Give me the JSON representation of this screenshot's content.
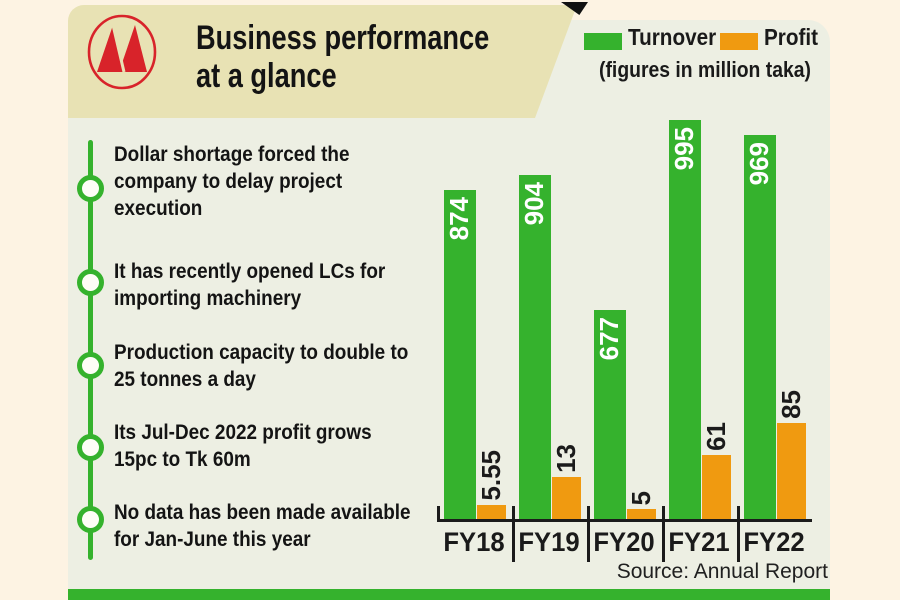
{
  "header": {
    "title_line1": "Business performance",
    "title_line2": "at a glance"
  },
  "legend": {
    "turnover_label": "Turnover",
    "profit_label": "Profit",
    "note": "(figures in million taka)"
  },
  "bullets": [
    "Dollar shortage forced the company to delay project execution",
    "It has recently opened LCs for importing machinery",
    "Production capacity to double to 25 tonnes a day",
    "Its Jul-Dec 2022 profit grows 15pc to Tk 60m",
    "No data has been made available for Jan-June this year"
  ],
  "chart_data": {
    "type": "bar",
    "categories": [
      "FY18",
      "FY19",
      "FY20",
      "FY21",
      "FY22"
    ],
    "series": [
      {
        "name": "Turnover",
        "color": "#35b22d",
        "values": [
          874,
          904,
          677,
          995,
          969
        ],
        "labels": [
          "874",
          "904",
          "677",
          "995",
          "969"
        ]
      },
      {
        "name": "Profit",
        "color": "#f09a10",
        "values": [
          5.55,
          13,
          5,
          61,
          85
        ],
        "labels": [
          "5.55",
          "13",
          "5",
          "61",
          "85"
        ]
      }
    ],
    "title": "Business performance at a glance",
    "unit": "million taka",
    "note": "(figures in million taka)",
    "legend_position": "top-right",
    "grid": false,
    "value_label_rotation": -90,
    "source": "Source: Annual Report"
  },
  "footer": {
    "source": "Source: Annual Report"
  },
  "colors": {
    "turnover_green": "#35b22d",
    "profit_orange": "#f09a10",
    "header_beige": "#e8e2b4",
    "panel_background": "#edefe3",
    "page_cream": "#fdf3e3",
    "logo_red": "#d8232a",
    "text_black": "#1a1a1a"
  }
}
